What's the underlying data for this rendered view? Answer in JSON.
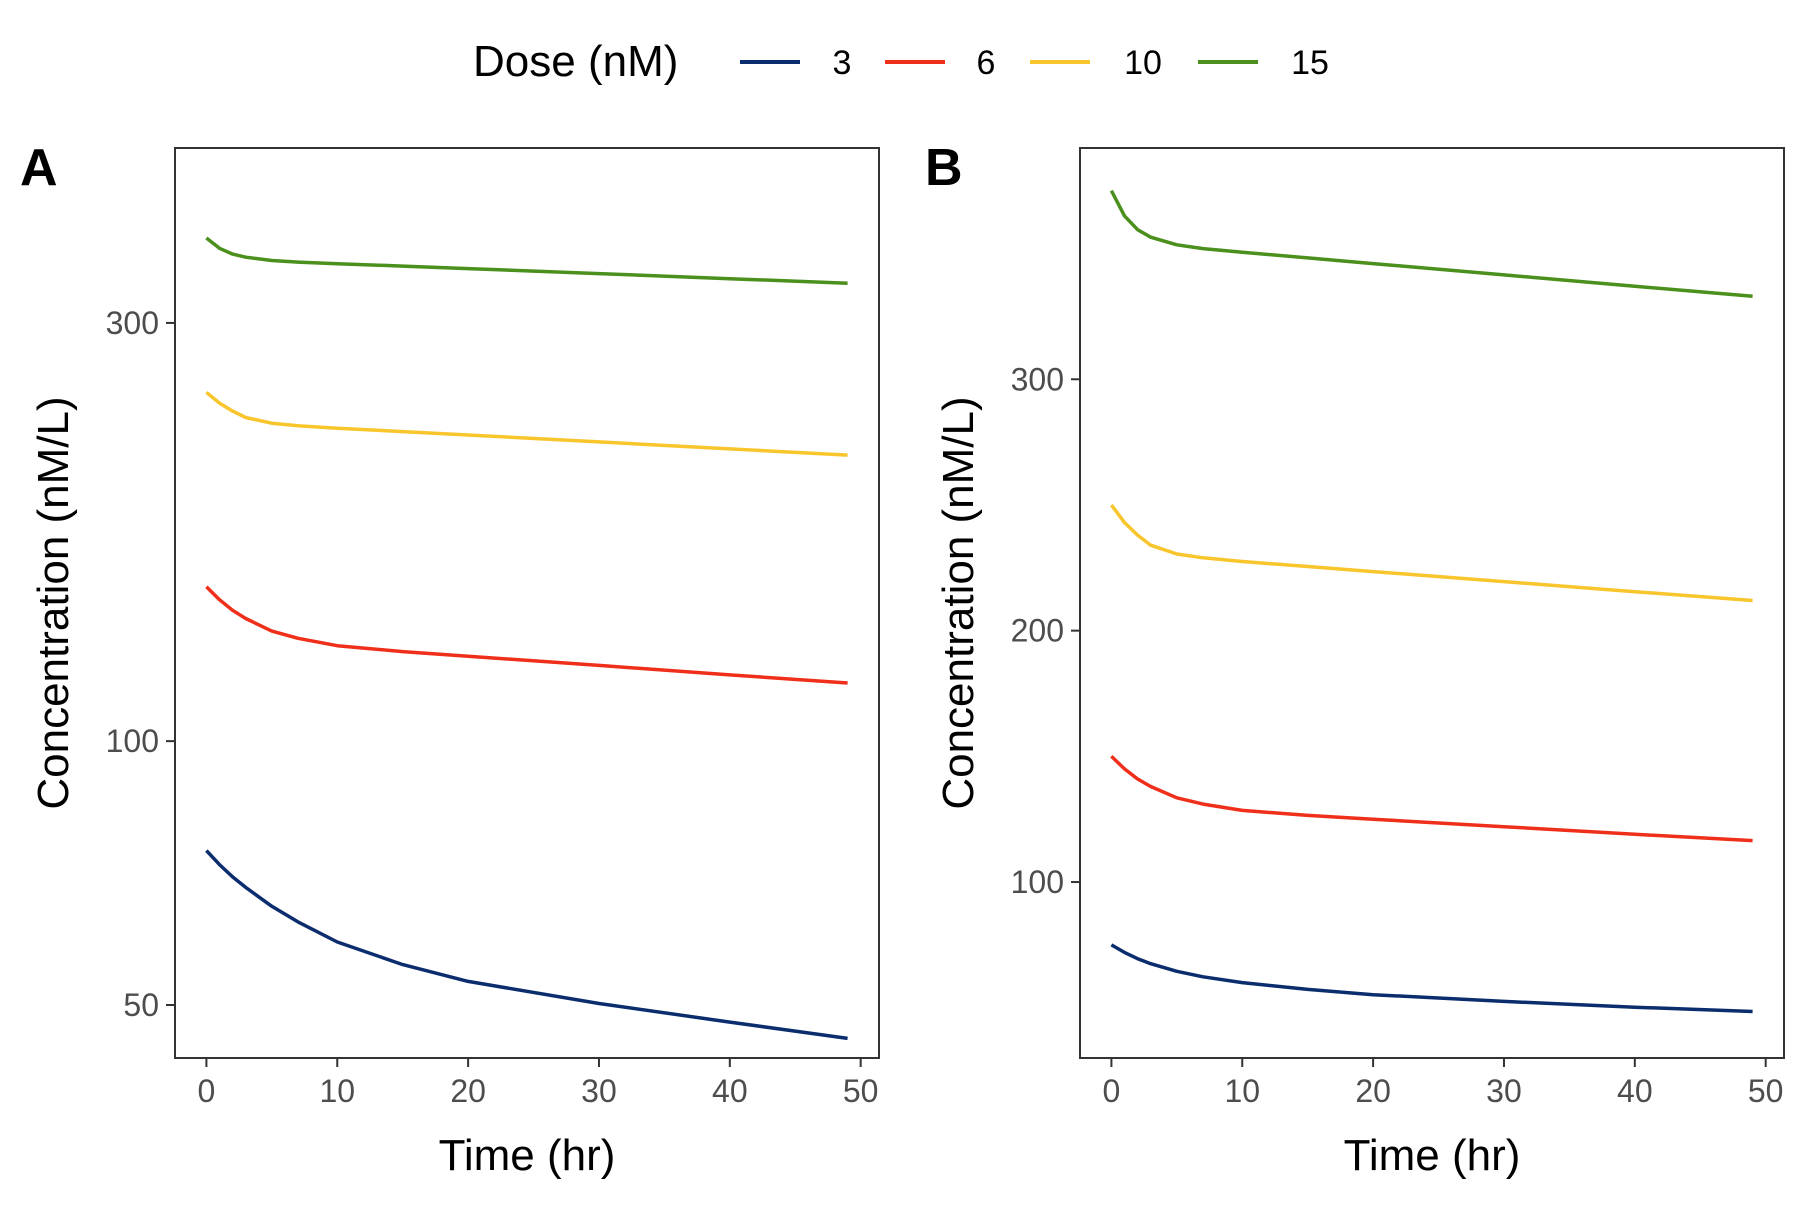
{
  "legend": {
    "title": "Dose (nM)",
    "entries": [
      {
        "label": "3",
        "color": "#0b2d6e"
      },
      {
        "label": "6",
        "color": "#f02f1a"
      },
      {
        "label": "10",
        "color": "#f8c52c"
      },
      {
        "label": "15",
        "color": "#4b8f1c"
      }
    ]
  },
  "chart_data": [
    {
      "panel": "A",
      "type": "line",
      "xlabel": "Time (hr)",
      "ylabel": "Concentration (nM/L)",
      "xlim": [
        -2.4,
        51.4
      ],
      "xticks": [
        0,
        10,
        20,
        30,
        40,
        50
      ],
      "yscale": "log",
      "ylim": [
        43.5,
        475
      ],
      "yticks": [
        50,
        100,
        300
      ],
      "grid": false,
      "series": [
        {
          "name": "3",
          "color": "#0b2d6e",
          "x": [
            0,
            1,
            2,
            3,
            5,
            7,
            10,
            15,
            20,
            30,
            40,
            49
          ],
          "y": [
            75,
            72.3,
            70.0,
            68.1,
            64.8,
            62.2,
            59.0,
            55.6,
            53.2,
            50.2,
            47.8,
            45.8
          ]
        },
        {
          "name": "6",
          "color": "#f02f1a",
          "x": [
            0,
            1,
            2,
            3,
            5,
            7,
            10,
            15,
            20,
            30,
            40,
            49
          ],
          "y": [
            150,
            145,
            141,
            138,
            133.5,
            131,
            128.5,
            126.5,
            125,
            122,
            119,
            116.5
          ]
        },
        {
          "name": "10",
          "color": "#f8c52c",
          "x": [
            0,
            1,
            2,
            3,
            5,
            7,
            10,
            15,
            20,
            30,
            40,
            49
          ],
          "y": [
            250,
            243,
            238,
            234,
            230.5,
            229,
            227.5,
            225.5,
            223.5,
            219.5,
            215.5,
            212
          ]
        },
        {
          "name": "15",
          "color": "#4b8f1c",
          "x": [
            0,
            1,
            2,
            3,
            5,
            7,
            10,
            15,
            20,
            30,
            40,
            49
          ],
          "y": [
            375,
            365,
            359.5,
            356.5,
            353.5,
            352,
            350.5,
            348.3,
            346,
            341.5,
            337,
            333
          ]
        }
      ]
    },
    {
      "panel": "B",
      "type": "line",
      "xlabel": "Time (hr)",
      "ylabel": "Concentration (nM/L)",
      "xlim": [
        -2.4,
        51.4
      ],
      "xticks": [
        0,
        10,
        20,
        30,
        40,
        50
      ],
      "yscale": "linear",
      "ylim": [
        30,
        392
      ],
      "yticks": [
        100,
        200,
        300
      ],
      "grid": false,
      "series": [
        {
          "name": "3",
          "color": "#0b2d6e",
          "x": [
            0,
            1,
            2,
            3,
            5,
            7,
            10,
            15,
            20,
            30,
            40,
            49
          ],
          "y": [
            75,
            72,
            69.5,
            67.5,
            64.5,
            62.3,
            60,
            57.3,
            55.2,
            52.5,
            50.2,
            48.5
          ]
        },
        {
          "name": "6",
          "color": "#f02f1a",
          "x": [
            0,
            1,
            2,
            3,
            5,
            7,
            10,
            15,
            20,
            30,
            40,
            49
          ],
          "y": [
            150,
            145,
            141,
            138,
            133.5,
            131,
            128.5,
            126.5,
            125,
            122,
            119,
            116.5
          ]
        },
        {
          "name": "10",
          "color": "#f8c52c",
          "x": [
            0,
            1,
            2,
            3,
            5,
            7,
            10,
            15,
            20,
            30,
            40,
            49
          ],
          "y": [
            250,
            243,
            238,
            234,
            230.5,
            229,
            227.5,
            225.5,
            223.5,
            219.5,
            215.5,
            212
          ]
        },
        {
          "name": "15",
          "color": "#4b8f1c",
          "x": [
            0,
            1,
            2,
            3,
            5,
            7,
            10,
            15,
            20,
            30,
            40,
            49
          ],
          "y": [
            375,
            365,
            359.5,
            356.5,
            353.5,
            352,
            350.5,
            348.3,
            346,
            341.5,
            337,
            333
          ]
        }
      ]
    }
  ]
}
